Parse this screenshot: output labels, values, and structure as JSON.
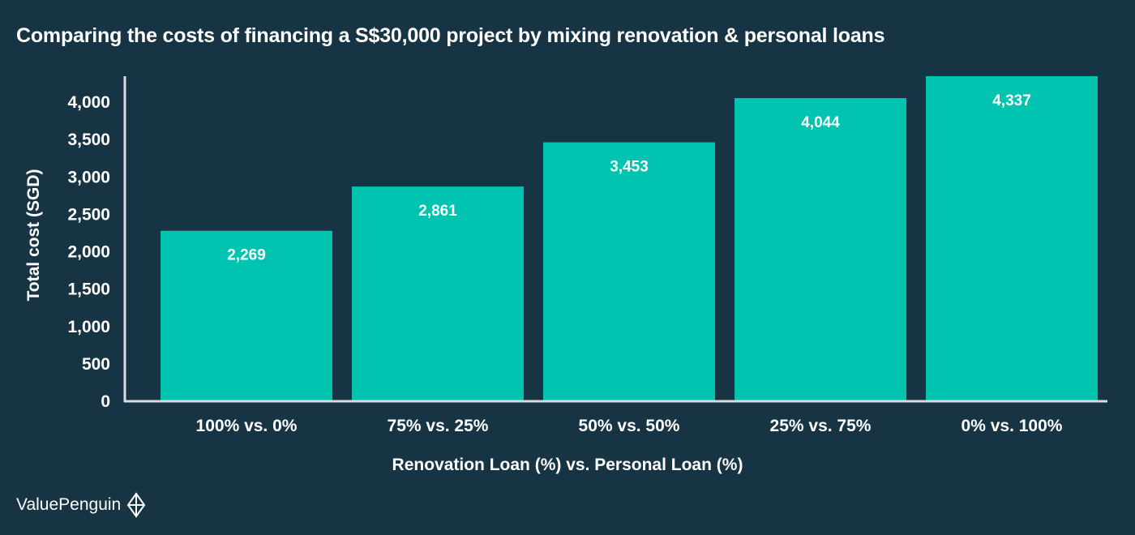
{
  "brand": {
    "name": "ValuePenguin",
    "icon": "valuepenguin-logo-icon"
  },
  "colors": {
    "background": "#163443",
    "bar": "#00c4b0",
    "axis": "#d9dde0",
    "text": "#ffffff"
  },
  "chart_data": {
    "type": "bar",
    "title": "Comparing the costs of financing a S$30,000 project by mixing renovation & personal loans",
    "xlabel": "Renovation Loan (%) vs. Personal Loan (%)",
    "ylabel": "Total cost (SGD)",
    "categories": [
      "100% vs. 0%",
      "75% vs. 25%",
      "50% vs. 50%",
      "25% vs. 75%",
      "0% vs. 100%"
    ],
    "values": [
      2269,
      2861,
      3453,
      4044,
      4337
    ],
    "value_labels": [
      "2,269",
      "2,861",
      "3,453",
      "4,044",
      "4,337"
    ],
    "ylim": [
      0,
      4337
    ],
    "yticks": [
      0,
      500,
      1000,
      1500,
      2000,
      2500,
      3000,
      3500,
      4000
    ],
    "ytick_labels": [
      "0",
      "500",
      "1,000",
      "1,500",
      "2,000",
      "2,500",
      "3,000",
      "3,500",
      "4,000"
    ],
    "grid": false,
    "legend": "none"
  }
}
